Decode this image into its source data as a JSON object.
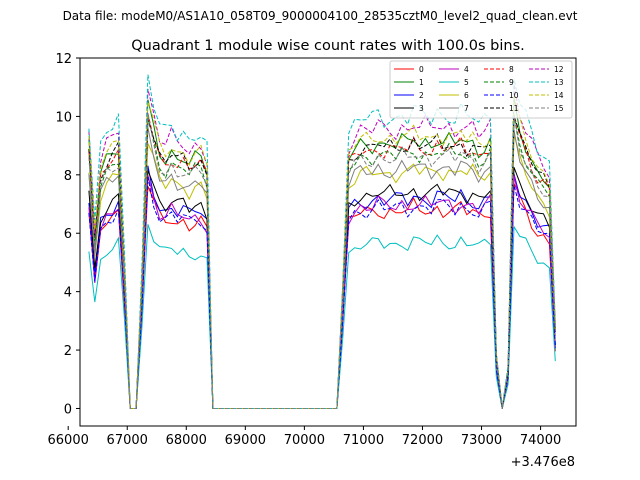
{
  "suptitle": "Data file: modeM0/AS1A10_058T09_9000004100_28535cztM0_level2_quad_clean.evt",
  "chart_data": {
    "type": "line",
    "title": "Quadrant 1 module wise count rates with 100.0s bins.",
    "xlabel": "",
    "ylabel": "",
    "x_offset_label": "+3.476e8",
    "xlim": [
      66200,
      74600
    ],
    "ylim": [
      -0.6,
      12.0
    ],
    "xticks": [
      66000,
      67000,
      68000,
      69000,
      70000,
      71000,
      72000,
      73000,
      74000
    ],
    "xtick_labels": [
      "66000",
      "67000",
      "68000",
      "69000",
      "70000",
      "71000",
      "72000",
      "73000",
      "74000"
    ],
    "yticks": [
      0,
      2,
      4,
      6,
      8,
      10,
      12
    ],
    "ytick_labels": [
      "0",
      "2",
      "4",
      "6",
      "8",
      "10",
      "12"
    ],
    "legend": "top-right",
    "series": [
      {
        "name": "0",
        "color": "#ff0000",
        "dash": "solid",
        "base": 6.7,
        "noise": 0.3
      },
      {
        "name": "1",
        "color": "#008000",
        "dash": "solid",
        "base": 9.0,
        "noise": 0.3
      },
      {
        "name": "2",
        "color": "#0000ff",
        "dash": "solid",
        "base": 7.1,
        "noise": 0.3
      },
      {
        "name": "3",
        "color": "#000000",
        "dash": "solid",
        "base": 7.3,
        "noise": 0.3
      },
      {
        "name": "4",
        "color": "#bf00bf",
        "dash": "solid",
        "base": 6.9,
        "noise": 0.3
      },
      {
        "name": "5",
        "color": "#00bfbf",
        "dash": "solid",
        "base": 5.6,
        "noise": 0.25
      },
      {
        "name": "6",
        "color": "#bfbf00",
        "dash": "solid",
        "base": 8.0,
        "noise": 0.3
      },
      {
        "name": "7",
        "color": "#808080",
        "dash": "solid",
        "base": 8.1,
        "noise": 0.3
      },
      {
        "name": "8",
        "color": "#ff0000",
        "dash": "dashed",
        "base": 8.8,
        "noise": 0.3
      },
      {
        "name": "9",
        "color": "#008000",
        "dash": "dashed",
        "base": 8.6,
        "noise": 0.3
      },
      {
        "name": "10",
        "color": "#0000ff",
        "dash": "dashed",
        "base": 6.8,
        "noise": 0.3
      },
      {
        "name": "11",
        "color": "#000000",
        "dash": "dashed",
        "base": 8.9,
        "noise": 0.3
      },
      {
        "name": "12",
        "color": "#bf00bf",
        "dash": "dashed",
        "base": 9.5,
        "noise": 0.35
      },
      {
        "name": "13",
        "color": "#00bfbf",
        "dash": "dashed",
        "base": 9.9,
        "noise": 0.35
      },
      {
        "name": "14",
        "color": "#bfbf00",
        "dash": "dashed",
        "base": 9.2,
        "noise": 0.3
      },
      {
        "name": "15",
        "color": "#808080",
        "dash": "dashed",
        "base": 8.5,
        "noise": 0.3
      }
    ],
    "profile": [
      [
        66350,
        1.0
      ],
      [
        66450,
        0.65
      ],
      [
        66550,
        0.9
      ],
      [
        66650,
        0.95
      ],
      [
        66750,
        0.97
      ],
      [
        66850,
        1.0
      ],
      [
        66950,
        0.55
      ],
      [
        67050,
        0.0
      ],
      [
        67150,
        0.0
      ],
      [
        67250,
        0.5
      ],
      [
        67350,
        1.15
      ],
      [
        67450,
        1.05
      ],
      [
        67550,
        0.97
      ],
      [
        67650,
        0.95
      ],
      [
        67750,
        0.98
      ],
      [
        67850,
        0.95
      ],
      [
        67950,
        0.96
      ],
      [
        68050,
        0.93
      ],
      [
        68150,
        0.95
      ],
      [
        68250,
        0.95
      ],
      [
        68350,
        0.9
      ],
      [
        68450,
        0.0
      ],
      [
        68550,
        0.0
      ],
      [
        69500,
        0.0
      ],
      [
        70500,
        0.0
      ],
      [
        70550,
        0.0
      ],
      [
        70650,
        0.45
      ],
      [
        70750,
        0.95
      ],
      [
        70850,
        0.98
      ],
      [
        70950,
        1.0
      ],
      [
        71050,
        1.0
      ],
      [
        71150,
        1.0
      ],
      [
        71250,
        1.02
      ],
      [
        71350,
        1.0
      ],
      [
        71450,
        1.01
      ],
      [
        71550,
        1.0
      ],
      [
        71650,
        1.02
      ],
      [
        71750,
        1.0
      ],
      [
        71850,
        1.03
      ],
      [
        71950,
        1.01
      ],
      [
        72050,
        1.02
      ],
      [
        72150,
        1.0
      ],
      [
        72250,
        1.03
      ],
      [
        72350,
        1.01
      ],
      [
        72450,
        1.02
      ],
      [
        72550,
        1.0
      ],
      [
        72650,
        1.03
      ],
      [
        72750,
        1.0
      ],
      [
        72850,
        1.01
      ],
      [
        72950,
        0.98
      ],
      [
        73050,
        1.0
      ],
      [
        73150,
        1.02
      ],
      [
        73250,
        0.2
      ],
      [
        73350,
        0.0
      ],
      [
        73450,
        0.15
      ],
      [
        73550,
        1.15
      ],
      [
        73650,
        1.05
      ],
      [
        73750,
        1.0
      ],
      [
        73850,
        0.95
      ],
      [
        73950,
        0.9
      ],
      [
        74050,
        0.88
      ],
      [
        74150,
        0.85
      ],
      [
        74250,
        0.3
      ]
    ]
  }
}
